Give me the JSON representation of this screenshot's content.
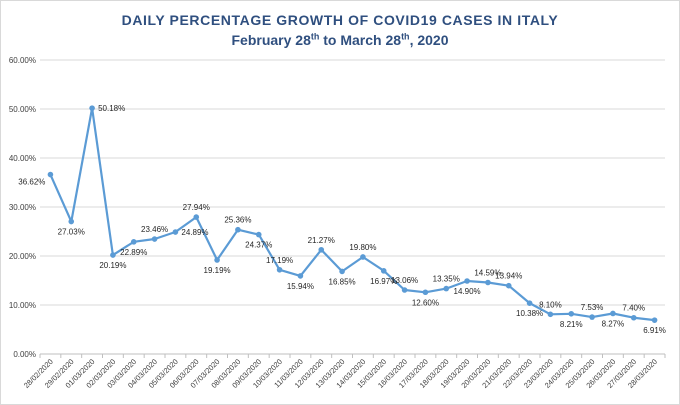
{
  "title": {
    "line1": "DAILY PERCENTAGE GROWTH OF COVID19 CASES IN ITALY",
    "line2_prefix": "February 28",
    "line2_sup1": "th",
    "line2_mid": " to March 28",
    "line2_sup2": "th",
    "line2_suffix": ", 2020"
  },
  "colors": {
    "line": "#5b9bd5",
    "grid": "#d9d9d9",
    "title": "#2f4f7f"
  },
  "chart_data": {
    "type": "line",
    "title": "DAILY PERCENTAGE GROWTH OF COVID19 CASES IN ITALY — February 28th to March 28th, 2020",
    "xlabel": "",
    "ylabel": "",
    "ylim": [
      0,
      60
    ],
    "yticks": [
      "0.00%",
      "10.00%",
      "20.00%",
      "30.00%",
      "40.00%",
      "50.00%",
      "60.00%"
    ],
    "grid": true,
    "legend": "none",
    "categories": [
      "28/02/2020",
      "29/02/2020",
      "01/03/2020",
      "02/03/2020",
      "03/03/2020",
      "04/03/2020",
      "05/03/2020",
      "06/03/2020",
      "07/03/2020",
      "08/03/2020",
      "09/03/2020",
      "10/03/2020",
      "11/03/2020",
      "12/03/2020",
      "13/03/2020",
      "14/03/2020",
      "15/03/2020",
      "16/03/2020",
      "17/03/2020",
      "18/03/2020",
      "19/03/2020",
      "20/03/2020",
      "21/03/2020",
      "22/03/2020",
      "23/03/2020",
      "24/03/2020",
      "25/03/2020",
      "26/03/2020",
      "27/03/2020",
      "28/03/2020"
    ],
    "values": [
      36.62,
      27.03,
      50.18,
      20.19,
      22.89,
      23.46,
      24.89,
      27.94,
      19.19,
      25.36,
      24.37,
      17.19,
      15.94,
      21.27,
      16.85,
      19.8,
      16.97,
      13.06,
      12.6,
      13.35,
      14.9,
      14.59,
      13.94,
      10.38,
      8.1,
      8.21,
      7.53,
      8.27,
      7.4,
      6.91
    ],
    "labels": [
      "36.62%",
      "27.03%",
      "50.18%",
      "20.19%",
      "22.89%",
      "23.46%",
      "24.89%",
      "27.94%",
      "19.19%",
      "25.36%",
      "24.37%",
      "17.19%",
      "15.94%",
      "21.27%",
      "16.85%",
      "19.80%",
      "16.97%",
      "13.06%",
      "12.60%",
      "13.35%",
      "14.90%",
      "14.59%",
      "13.94%",
      "10.38%",
      "8.10%",
      "8.21%",
      "7.53%",
      "8.27%",
      "7.40%",
      "6.91%"
    ],
    "label_side": [
      "left",
      "below",
      "right",
      "below",
      "below",
      "above",
      "right",
      "above",
      "below",
      "above",
      "below",
      "above",
      "below",
      "above",
      "below",
      "above",
      "below",
      "above",
      "below",
      "above",
      "below",
      "above",
      "above",
      "below",
      "above",
      "below",
      "above",
      "below",
      "above",
      "below"
    ]
  }
}
